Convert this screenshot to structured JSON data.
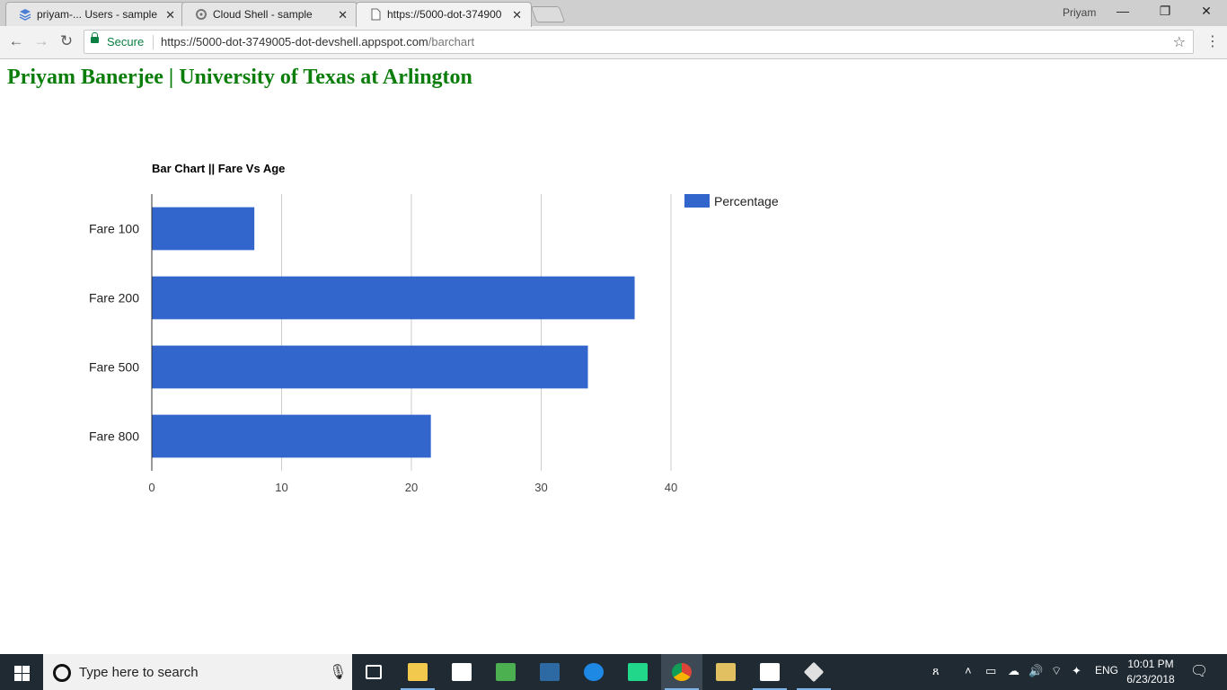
{
  "browser": {
    "tabs": [
      {
        "label": "priyam-... Users - sample",
        "icon": "layers-icon",
        "active": false
      },
      {
        "label": "Cloud Shell - sample",
        "icon": "gear-icon",
        "active": false
      },
      {
        "label": "https://5000-dot-374900",
        "icon": "page-icon",
        "active": true
      }
    ],
    "profile_name": "Priyam",
    "secure_label": "Secure",
    "url_host": "https://5000-dot-3749005-dot-devshell.appspot.com",
    "url_path": "/barchart"
  },
  "page": {
    "heading": "Priyam Banerjee | University of Texas at Arlington"
  },
  "chart_data": {
    "type": "bar",
    "orientation": "horizontal",
    "title": "Bar Chart || Fare Vs Age",
    "categories": [
      "Fare 100",
      "Fare 200",
      "Fare 500",
      "Fare 800"
    ],
    "series": [
      {
        "name": "Percentage",
        "color": "#3366cc",
        "values": [
          7.9,
          37.2,
          33.6,
          21.5
        ]
      }
    ],
    "xlim": [
      0,
      40
    ],
    "xticks": [
      0,
      10,
      20,
      30,
      40
    ],
    "xlabel": "",
    "ylabel": "",
    "grid": true,
    "legend_position": "right"
  },
  "taskbar": {
    "search_placeholder": "Type here to search",
    "language": "ENG",
    "time": "10:01 PM",
    "date": "6/23/2018"
  }
}
